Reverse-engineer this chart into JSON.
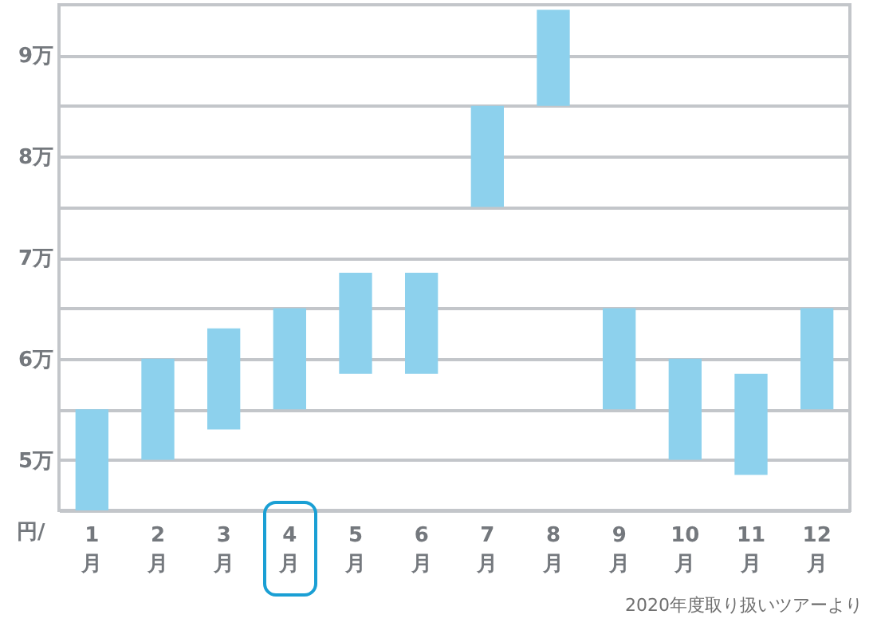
{
  "chart_data": {
    "type": "bar",
    "categories": [
      "1月",
      "2月",
      "3月",
      "4月",
      "5月",
      "6月",
      "7月",
      "8月",
      "9月",
      "10月",
      "11月",
      "12月"
    ],
    "base": [
      4.5,
      5,
      5.3,
      5.5,
      5.85,
      5.85,
      7.5,
      8.5,
      5.5,
      5,
      4.85,
      5.5
    ],
    "values": [
      1,
      1,
      1,
      1,
      1,
      1,
      1,
      0.95,
      1,
      1,
      1,
      1
    ],
    "color": "#8dd1ed",
    "ylim": [
      4.5,
      9.5
    ],
    "yticks": [
      {
        "value": 4.5,
        "label": null
      },
      {
        "value": 5,
        "label": "5万"
      },
      {
        "value": 5.5,
        "label": null
      },
      {
        "value": 6,
        "label": "6万"
      },
      {
        "value": 6.5,
        "label": null
      },
      {
        "value": 7,
        "label": "7万"
      },
      {
        "value": 7.5,
        "label": null
      },
      {
        "value": 8,
        "label": "8万"
      },
      {
        "value": 8.5,
        "label": null
      },
      {
        "value": 9,
        "label": "9万"
      }
    ],
    "grid": "y",
    "ylabel": "円/",
    "annotations": [
      "2020年度取り扱いツアーより"
    ]
  }
}
